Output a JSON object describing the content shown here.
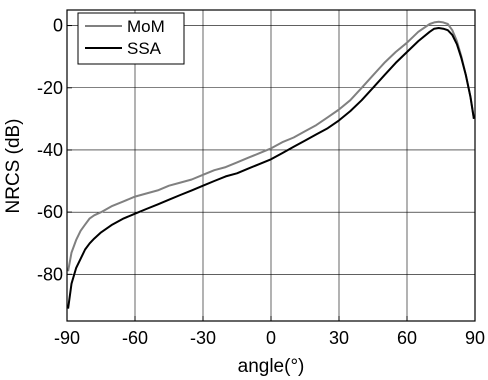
{
  "chart_data": {
    "type": "line",
    "title": "",
    "xlabel": "angle(°)",
    "ylabel": "NRCS (dB)",
    "xlim": [
      -90,
      90
    ],
    "ylim": [
      -95,
      5
    ],
    "xticks": [
      -90,
      -60,
      -30,
      0,
      30,
      60,
      90
    ],
    "yticks": [
      0,
      -20,
      -40,
      -60,
      -80
    ],
    "xtick_labels": [
      "-90",
      "-60",
      "-30",
      "0",
      "30",
      "60",
      "90"
    ],
    "ytick_labels": [
      "0",
      "-20",
      "-40",
      "-60",
      "-80"
    ],
    "grid": true,
    "legend_position": "top-left",
    "series": [
      {
        "name": "MoM",
        "color": "#808080",
        "x": [
          -89.5,
          -88,
          -86,
          -84,
          -82,
          -80,
          -78,
          -75,
          -70,
          -65,
          -60,
          -55,
          -50,
          -45,
          -40,
          -35,
          -30,
          -25,
          -20,
          -15,
          -10,
          -5,
          0,
          5,
          10,
          15,
          20,
          25,
          30,
          35,
          40,
          45,
          50,
          55,
          60,
          65,
          70,
          72,
          74,
          76,
          78,
          80,
          82,
          84,
          86,
          88,
          89.5
        ],
        "values": [
          -79,
          -73,
          -69,
          -66,
          -64,
          -62,
          -61,
          -60,
          -58,
          -56.5,
          -55,
          -54,
          -53,
          -51.5,
          -50.5,
          -49.5,
          -48,
          -46.5,
          -45.5,
          -44,
          -42.5,
          -41,
          -39.5,
          -37.5,
          -36,
          -34,
          -32,
          -29.5,
          -27,
          -24,
          -20,
          -16,
          -12,
          -8.5,
          -5.5,
          -2,
          0.5,
          1,
          1.2,
          1,
          0.5,
          -1.5,
          -5,
          -10,
          -16,
          -23,
          -30
        ]
      },
      {
        "name": "SSA",
        "color": "#000000",
        "x": [
          -89.5,
          -88,
          -86,
          -84,
          -82,
          -80,
          -78,
          -75,
          -70,
          -65,
          -60,
          -55,
          -50,
          -45,
          -40,
          -35,
          -30,
          -25,
          -20,
          -15,
          -10,
          -5,
          0,
          5,
          10,
          15,
          20,
          25,
          30,
          35,
          40,
          45,
          50,
          55,
          60,
          65,
          70,
          72,
          74,
          76,
          78,
          80,
          82,
          84,
          86,
          88,
          89.5
        ],
        "values": [
          -91,
          -83,
          -78,
          -75,
          -72,
          -70,
          -68.5,
          -66.5,
          -64,
          -62,
          -60.5,
          -59,
          -57.5,
          -56,
          -54.5,
          -53,
          -51.5,
          -50,
          -48.5,
          -47.5,
          -46,
          -44.5,
          -43,
          -41,
          -39,
          -37,
          -35,
          -33,
          -30.5,
          -27.5,
          -24,
          -20,
          -16,
          -12,
          -8.5,
          -5,
          -2,
          -1,
          -0.8,
          -1,
          -1.5,
          -3,
          -6,
          -10.5,
          -16,
          -23,
          -30
        ]
      }
    ]
  }
}
